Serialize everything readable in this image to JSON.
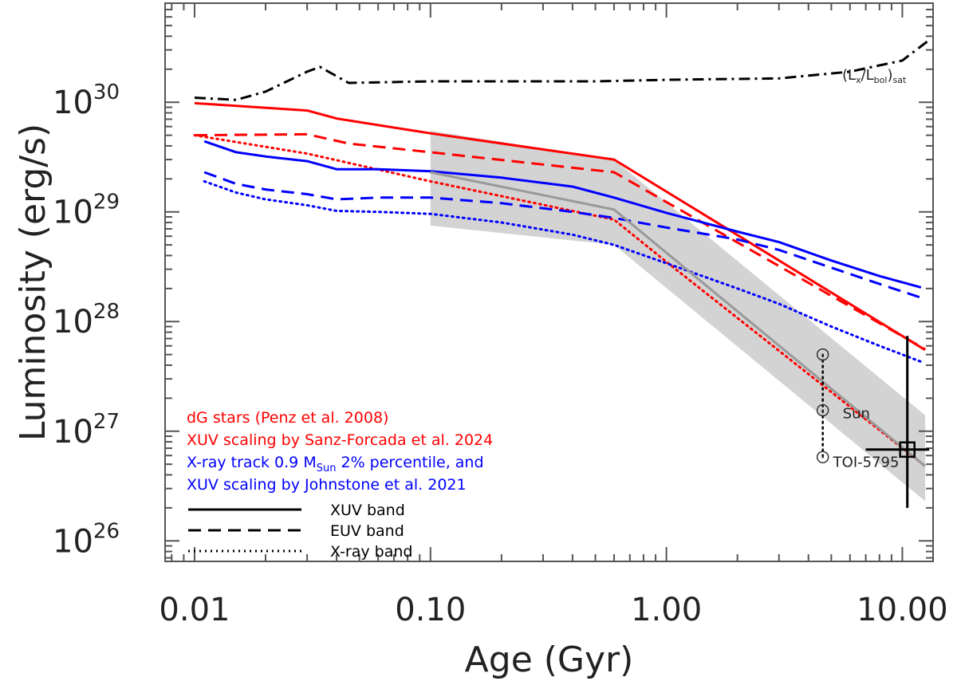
{
  "chart_data": {
    "type": "line",
    "xlabel": "Age (Gyr)",
    "ylabel": "Luminosity (erg/s)",
    "xscale": "log",
    "yscale": "log",
    "xlim": [
      0.0075,
      13.5
    ],
    "ylim": [
      6.5e+25,
      8e+30
    ],
    "x_ticks": [
      {
        "value": 0.01,
        "label": "0.01"
      },
      {
        "value": 0.1,
        "label": "0.10"
      },
      {
        "value": 1.0,
        "label": "1.00"
      },
      {
        "value": 10.0,
        "label": "10.00"
      }
    ],
    "y_ticks": [
      {
        "value": 1e+26,
        "base": "10",
        "exp": "26"
      },
      {
        "value": 1e+27,
        "base": "10",
        "exp": "27"
      },
      {
        "value": 1e+28,
        "base": "10",
        "exp": "28"
      },
      {
        "value": 1e+29,
        "base": "10",
        "exp": "29"
      },
      {
        "value": 1e+30,
        "base": "10",
        "exp": "30"
      }
    ],
    "series": [
      {
        "id": "sat",
        "color": "#000000",
        "dash": "dashdot",
        "x": [
          0.01,
          0.015,
          0.02,
          0.03,
          0.034,
          0.045,
          0.1,
          0.5,
          1.0,
          3.0,
          6.0,
          10.0,
          13.0
        ],
        "y": [
          1.1e+30,
          1.05e+30,
          1.25e+30,
          1.9e+30,
          2.1e+30,
          1.5e+30,
          1.55e+30,
          1.55e+30,
          1.6e+30,
          1.65e+30,
          1.9e+30,
          2.4e+30,
          3.7e+30
        ]
      },
      {
        "id": "penz-xuv",
        "color": "#ff0000",
        "dash": "solid",
        "x": [
          0.01,
          0.03,
          0.04,
          0.1,
          0.6,
          12.5
        ],
        "y": [
          9.8e+29,
          8.4e+29,
          7.1e+29,
          5.2e+29,
          3e+29,
          5.5e+27
        ]
      },
      {
        "id": "penz-euv",
        "color": "#ff0000",
        "dash": "dashed",
        "x": [
          0.01,
          0.03,
          0.045,
          0.1,
          0.6,
          12.5
        ],
        "y": [
          5e+29,
          5.1e+29,
          4.2e+29,
          3.5e+29,
          2.3e+29,
          5.6e+27
        ]
      },
      {
        "id": "penz-xray",
        "color": "#ff0000",
        "dash": "dotted",
        "x": [
          0.01,
          0.03,
          0.1,
          0.6,
          1.0,
          12.5
        ],
        "y": [
          5e+29,
          3.4e+29,
          1.9e+29,
          8.5e+28,
          3.5e+28,
          4.8e+26
        ]
      },
      {
        "id": "john-xuv",
        "color": "#0000ff",
        "dash": "solid",
        "x": [
          0.011,
          0.015,
          0.02,
          0.03,
          0.04,
          0.06,
          0.1,
          0.2,
          0.4,
          0.6,
          1.0,
          2.0,
          3.0,
          5.0,
          8.0,
          12.0
        ],
        "y": [
          4.4e+29,
          3.5e+29,
          3.2e+29,
          2.9e+29,
          2.45e+29,
          2.45e+29,
          2.35e+29,
          2.05e+29,
          1.7e+29,
          1.35e+29,
          9.8e+28,
          6.6e+28,
          5.3e+28,
          3.6e+28,
          2.6e+28,
          2.05e+28
        ]
      },
      {
        "id": "john-euv",
        "color": "#0000ff",
        "dash": "dashed",
        "x": [
          0.011,
          0.015,
          0.02,
          0.03,
          0.04,
          0.06,
          0.1,
          0.2,
          0.4,
          0.6,
          1.0,
          2.0,
          3.0,
          5.0,
          8.0,
          12.0
        ],
        "y": [
          2.3e+29,
          1.8e+29,
          1.6e+29,
          1.45e+29,
          1.3e+29,
          1.35e+29,
          1.35e+29,
          1.2e+29,
          1e+29,
          8.8e+28,
          7.2e+28,
          5.6e+28,
          4.5e+28,
          3.1e+28,
          2.2e+28,
          1.65e+28
        ]
      },
      {
        "id": "john-xray",
        "color": "#0000ff",
        "dash": "dotted",
        "x": [
          0.011,
          0.015,
          0.02,
          0.03,
          0.04,
          0.06,
          0.1,
          0.2,
          0.4,
          0.6,
          1.0,
          2.0,
          3.0,
          5.0,
          8.0,
          12.0
        ],
        "y": [
          1.9e+29,
          1.5e+29,
          1.3e+29,
          1.15e+29,
          1.02e+29,
          1e+29,
          9.6e+28,
          8e+28,
          6.2e+28,
          5e+28,
          3.4e+28,
          2e+28,
          1.45e+28,
          9e+27,
          6e+27,
          4.3e+27
        ]
      },
      {
        "id": "sanz-mid",
        "color": "#999999",
        "dash": "solid",
        "x": [
          0.1,
          0.6,
          12.5
        ],
        "y": [
          2.3e+29,
          1.05e+29,
          4.8e+26
        ]
      }
    ],
    "band": {
      "color": "#d3d3d3",
      "x": [
        0.1,
        0.6,
        12.5
      ],
      "upper": [
        5.5e+29,
        3e+29,
        1.4e+27
      ],
      "lower": [
        7.5e+28,
        5e+28,
        2.3e+26
      ]
    },
    "sun": {
      "x": 4.6,
      "values": [
        5e+27,
        1.55e+27,
        5.8e+26
      ],
      "label": "Sun"
    },
    "toi": {
      "x": 10.5,
      "y": 6.8e+26,
      "yerr_low": 2e+26,
      "yerr_high": 7.4e+27,
      "xerr_low": 7.0,
      "xerr_high": 13.0,
      "label": "TOI-5795"
    },
    "sat_label": {
      "L": "(L",
      "x": "x",
      "slash": "/L",
      "bol": "bol",
      "close": ")",
      "sat": "sat"
    },
    "legend": {
      "entries": [
        {
          "text": "dG stars (Penz et al. 2008)",
          "color": "#ff0000"
        },
        {
          "text": "XUV scaling by Sanz-Forcada et al. 2024",
          "color": "#ff0000"
        },
        {
          "text_pre": "X-ray track 0.9 M",
          "text_sub": "Sun",
          "text_post": " 2% percentile, and",
          "color": "#0000ff"
        },
        {
          "text": "XUV scaling by Johnstone et al. 2021",
          "color": "#0000ff"
        }
      ],
      "line_styles": [
        {
          "label": "XUV band",
          "dash": "solid"
        },
        {
          "label": "EUV band",
          "dash": "dashed"
        },
        {
          "label": "X-ray band",
          "dash": "dotted"
        }
      ]
    }
  }
}
